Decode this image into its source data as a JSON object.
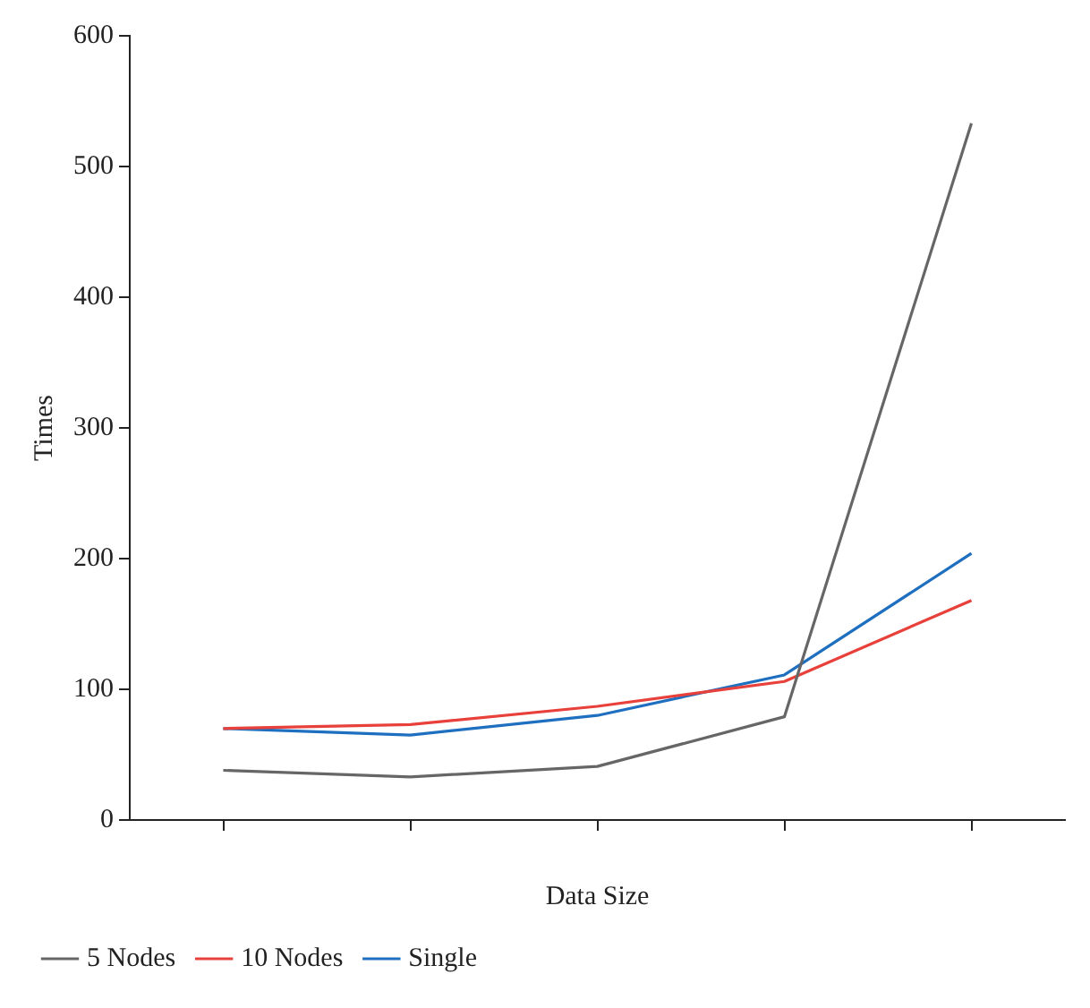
{
  "chart_data": {
    "type": "line",
    "xlabel": "Data Size",
    "ylabel": "Times",
    "categories": [
      null,
      null,
      null,
      null,
      null
    ],
    "series": [
      {
        "name": "5 Nodes",
        "color": "#666666",
        "values": [
          38,
          33,
          41,
          79,
          533
        ]
      },
      {
        "name": "10 Nodes",
        "color": "#e8403a",
        "values": [
          70,
          73,
          87,
          106,
          168
        ]
      },
      {
        "name": "Single",
        "color": "#1f6fc0",
        "values": [
          70,
          65,
          80,
          111,
          204
        ]
      }
    ],
    "ylim": [
      0,
      600
    ],
    "yticks": [
      0,
      100,
      200,
      300,
      400,
      500,
      600
    ],
    "grid": false,
    "legend": "bottom",
    "marker": "none",
    "line_style": "solid"
  }
}
